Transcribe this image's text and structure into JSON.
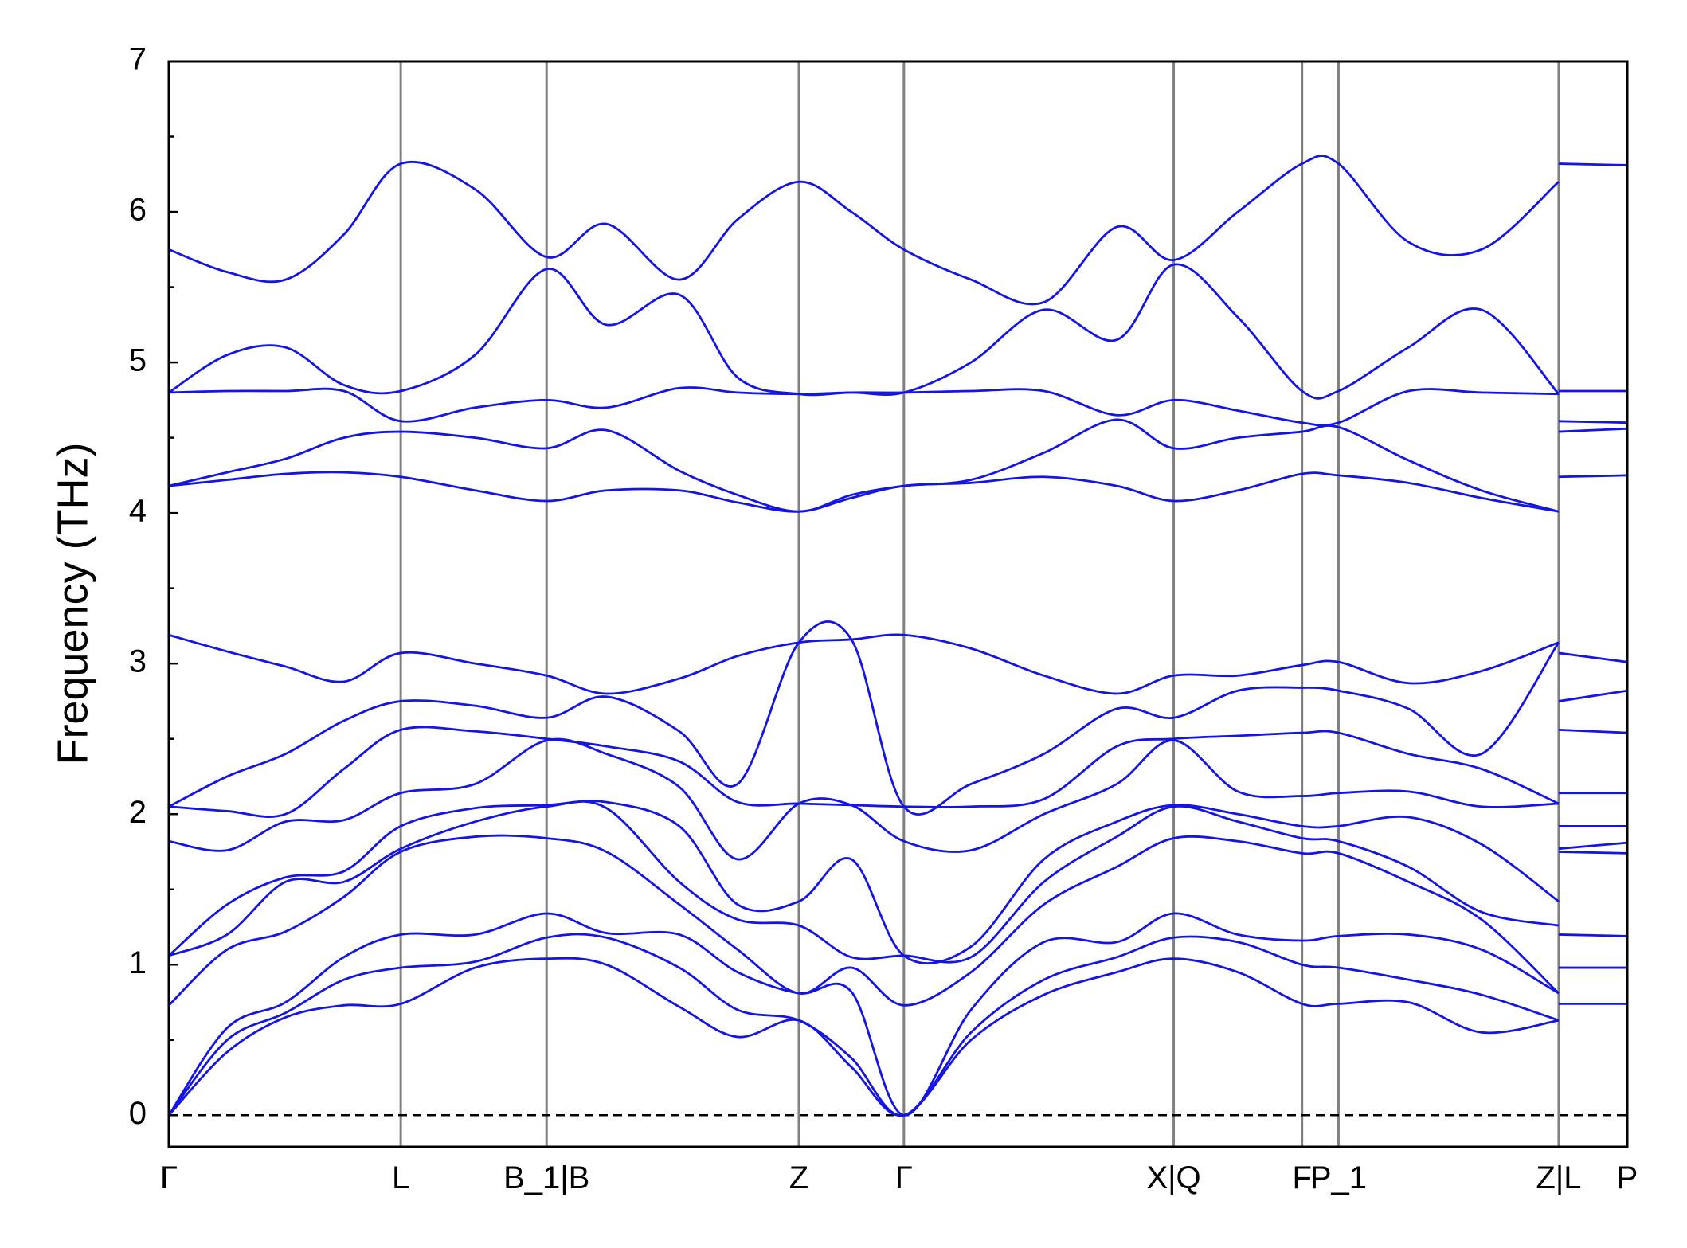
{
  "chart_data": {
    "type": "line",
    "y_label": "Frequency (THz)",
    "color": "#1414e6",
    "xlim": [
      0,
      1
    ],
    "ylim": [
      -0.21,
      7
    ],
    "yticks": [
      0,
      1,
      2,
      3,
      4,
      5,
      6,
      7
    ],
    "yticks_minor": [
      0.5,
      1.5,
      2.5,
      3.5,
      4.5,
      5.5,
      6.5
    ],
    "xticks": [
      {
        "value": 0,
        "label": "Γ"
      },
      {
        "value": 0.159,
        "label": "L"
      },
      {
        "value": 0.259,
        "label": "B_1|B"
      },
      {
        "value": 0.432,
        "label": "Z"
      },
      {
        "value": 0.504,
        "label": "Γ"
      },
      {
        "value": 0.689,
        "label": "X|Q"
      },
      {
        "value": 0.777,
        "label": "F"
      },
      {
        "value": 0.802,
        "label": "P_1"
      },
      {
        "value": 0.953,
        "label": "Z|L"
      },
      {
        "value": 1,
        "label": "P"
      }
    ],
    "zero_line": 0,
    "x": [
      0,
      0.04,
      0.08,
      0.12,
      0.159,
      0.21,
      0.259,
      0.3,
      0.35,
      0.39,
      0.432,
      0.468,
      0.504,
      0.55,
      0.6,
      0.65,
      0.689,
      0.733,
      0.777,
      0.802,
      0.85,
      0.9,
      0.953,
      0.953,
      0.953,
      1
    ],
    "bands": [
      [
        0,
        0.42,
        0.65,
        0.73,
        0.74,
        0.98,
        1.04,
        1.0,
        0.72,
        0.52,
        0.63,
        0.32,
        0,
        0.5,
        0.8,
        0.95,
        1.04,
        0.95,
        0.74,
        0.74,
        0.75,
        0.55,
        0.63,
        null,
        0.74,
        0.74
      ],
      [
        0,
        0.5,
        0.68,
        0.9,
        0.98,
        1.02,
        1.18,
        1.18,
        0.98,
        0.7,
        0.63,
        0.38,
        0,
        0.55,
        0.9,
        1.05,
        1.18,
        1.15,
        1.0,
        0.98,
        0.9,
        0.8,
        0.63,
        null,
        0.98,
        0.98
      ],
      [
        0,
        0.58,
        0.75,
        1.05,
        1.2,
        1.2,
        1.34,
        1.21,
        1.2,
        0.95,
        0.81,
        0.82,
        0,
        0.7,
        1.15,
        1.15,
        1.34,
        1.2,
        1.16,
        1.19,
        1.2,
        1.1,
        0.81,
        null,
        1.2,
        1.19
      ],
      [
        0.73,
        1.1,
        1.22,
        1.45,
        1.75,
        1.85,
        1.84,
        1.75,
        1.4,
        1.1,
        0.81,
        0.98,
        0.73,
        0.95,
        1.4,
        1.65,
        1.84,
        1.82,
        1.74,
        1.74,
        1.55,
        1.3,
        0.81,
        null,
        1.75,
        1.74
      ],
      [
        1.06,
        1.2,
        1.55,
        1.55,
        1.77,
        1.95,
        2.05,
        2.04,
        1.55,
        1.3,
        1.26,
        1.05,
        1.06,
        1.05,
        1.55,
        1.85,
        2.05,
        1.95,
        1.84,
        1.82,
        1.65,
        1.35,
        1.26,
        null,
        1.77,
        1.81
      ],
      [
        1.06,
        1.4,
        1.58,
        1.62,
        1.92,
        2.04,
        2.06,
        2.08,
        1.92,
        1.4,
        1.42,
        1.7,
        1.06,
        1.12,
        1.7,
        1.95,
        2.06,
        2.0,
        1.92,
        1.92,
        1.98,
        1.8,
        1.42,
        null,
        1.92,
        1.92
      ],
      [
        1.82,
        1.76,
        1.95,
        1.96,
        2.14,
        2.2,
        2.49,
        2.4,
        2.18,
        1.7,
        2.07,
        2.06,
        1.82,
        1.76,
        2.0,
        2.2,
        2.49,
        2.15,
        2.12,
        2.14,
        2.15,
        2.05,
        2.07,
        null,
        2.14,
        2.14
      ],
      [
        2.05,
        2.02,
        2.0,
        2.3,
        2.56,
        2.55,
        2.5,
        2.45,
        2.35,
        2.08,
        2.07,
        2.06,
        2.05,
        2.05,
        2.1,
        2.45,
        2.5,
        2.52,
        2.54,
        2.54,
        2.4,
        2.3,
        2.07,
        null,
        2.56,
        2.54
      ],
      [
        2.05,
        2.25,
        2.4,
        2.62,
        2.75,
        2.72,
        2.64,
        2.78,
        2.55,
        2.2,
        3.14,
        3.16,
        2.05,
        2.2,
        2.4,
        2.7,
        2.64,
        2.82,
        2.84,
        2.82,
        2.7,
        2.4,
        3.14,
        null,
        2.75,
        2.82
      ],
      [
        3.19,
        3.08,
        2.98,
        2.88,
        3.07,
        3.0,
        2.92,
        2.8,
        2.9,
        3.05,
        3.14,
        3.16,
        3.19,
        3.1,
        2.92,
        2.8,
        2.92,
        2.92,
        2.99,
        3.01,
        2.87,
        2.95,
        3.14,
        null,
        3.07,
        3.01
      ],
      [
        4.18,
        4.22,
        4.26,
        4.27,
        4.24,
        4.15,
        4.08,
        4.15,
        4.15,
        4.07,
        4.01,
        4.1,
        4.18,
        4.2,
        4.24,
        4.18,
        4.08,
        4.15,
        4.26,
        4.25,
        4.2,
        4.1,
        4.01,
        null,
        4.24,
        4.25
      ],
      [
        4.18,
        4.27,
        4.36,
        4.5,
        4.54,
        4.5,
        4.43,
        4.55,
        4.28,
        4.12,
        4.01,
        4.12,
        4.18,
        4.22,
        4.4,
        4.62,
        4.43,
        4.5,
        4.54,
        4.57,
        4.35,
        4.15,
        4.01,
        null,
        4.54,
        4.56
      ],
      [
        4.8,
        4.81,
        4.81,
        4.81,
        4.61,
        4.7,
        4.75,
        4.7,
        4.83,
        4.8,
        4.79,
        4.8,
        4.8,
        4.81,
        4.81,
        4.65,
        4.75,
        4.68,
        4.6,
        4.6,
        4.81,
        4.8,
        4.79,
        null,
        4.61,
        4.6
      ],
      [
        4.8,
        5.05,
        5.1,
        4.85,
        4.81,
        5.05,
        5.62,
        5.25,
        5.45,
        4.9,
        4.79,
        4.8,
        4.8,
        5.0,
        5.35,
        5.15,
        5.65,
        5.3,
        4.81,
        4.81,
        5.1,
        5.35,
        4.79,
        null,
        4.81,
        4.81
      ],
      [
        5.75,
        5.6,
        5.55,
        5.85,
        6.32,
        6.15,
        5.7,
        5.92,
        5.55,
        5.95,
        6.2,
        6.0,
        5.75,
        5.55,
        5.4,
        5.9,
        5.68,
        6.0,
        6.32,
        6.32,
        5.8,
        5.75,
        6.2,
        null,
        6.32,
        6.31
      ]
    ]
  }
}
